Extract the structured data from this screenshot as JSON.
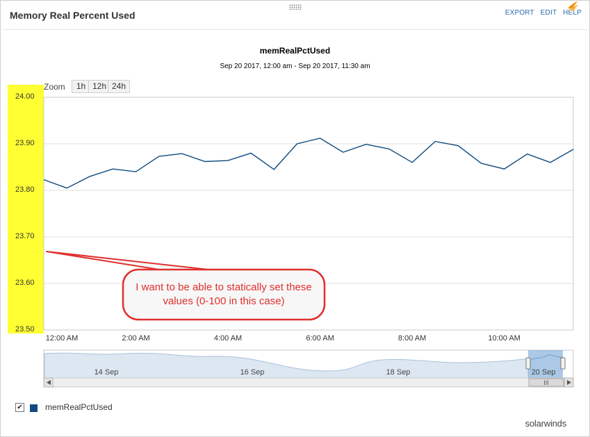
{
  "widget": {
    "title": "Memory Real Percent Used",
    "links": [
      "EXPORT",
      "EDIT",
      "HELP"
    ]
  },
  "chart": {
    "title": "memRealPctUsed",
    "subtitle": "Sep 20 2017, 12:00 am - Sep 20 2017, 11:30 am",
    "zoom_label": "Zoom",
    "zoom_buttons": [
      "1h",
      "12h",
      "24h"
    ]
  },
  "annotation": {
    "text": "I want to be able to statically set these values (0-100 in this case)"
  },
  "navigator": {
    "labels": [
      "14 Sep",
      "16 Sep",
      "18 Sep",
      "20 Sep"
    ],
    "scroll_thumb": "III"
  },
  "legend": {
    "series_label": "memRealPctUsed",
    "checked": true,
    "checkmark": "✔"
  },
  "brand": {
    "name": "solarwinds"
  },
  "colors": {
    "series": "#0d4b82",
    "highlight": "#ffff33",
    "annotation": "#e0302d",
    "link": "#2a6aa8"
  },
  "chart_data": {
    "type": "line",
    "series": [
      {
        "name": "memRealPctUsed",
        "x": [
          "12:00 AM",
          "12:30 AM",
          "1:00 AM",
          "1:30 AM",
          "2:00 AM",
          "2:30 AM",
          "3:00 AM",
          "3:30 AM",
          "4:00 AM",
          "4:30 AM",
          "5:00 AM",
          "5:30 AM",
          "6:00 AM",
          "6:30 AM",
          "7:00 AM",
          "7:30 AM",
          "8:00 AM",
          "8:30 AM",
          "9:00 AM",
          "9:30 AM",
          "10:00 AM",
          "10:30 AM",
          "11:00 AM",
          "11:30 AM"
        ],
        "values": [
          23.823,
          23.805,
          23.83,
          23.846,
          23.84,
          23.873,
          23.879,
          23.862,
          23.864,
          23.88,
          23.845,
          23.9,
          23.912,
          23.882,
          23.899,
          23.889,
          23.86,
          23.905,
          23.896,
          23.858,
          23.846,
          23.878,
          23.86,
          23.888
        ]
      }
    ],
    "y_ticks": [
      "23.50",
      "23.60",
      "23.70",
      "23.80",
      "23.90",
      "24.00"
    ],
    "x_ticks": [
      "12:00 AM",
      "2:00 AM",
      "4:00 AM",
      "6:00 AM",
      "8:00 AM",
      "10:00 AM"
    ],
    "ylim": [
      23.5,
      24.0
    ],
    "xlim_hours": [
      0,
      11.5
    ],
    "grid": true,
    "legend": "bottom-left"
  }
}
